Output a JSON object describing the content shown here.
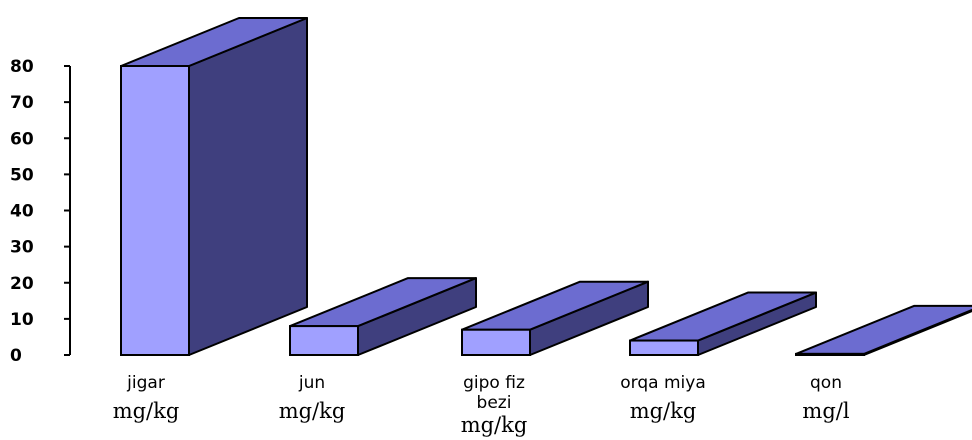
{
  "chart_data": {
    "type": "bar",
    "style": "3d",
    "categories": [
      {
        "name": "jigar",
        "unit": "mg/kg"
      },
      {
        "name": "jun",
        "unit": "mg/kg"
      },
      {
        "name": "gipo fiz bezi",
        "unit": "mg/kg"
      },
      {
        "name": "orqa miya",
        "unit": "mg/kg"
      },
      {
        "name": "qon",
        "unit": "mg/l"
      }
    ],
    "values": [
      80,
      8,
      7,
      4,
      0.3
    ],
    "ylim": [
      0,
      80
    ],
    "yticks": [
      "0",
      "10",
      "20",
      "30",
      "40",
      "50",
      "60",
      "70",
      "80"
    ],
    "grid": false,
    "colors": {
      "front": "#a0a0ff",
      "side": "#3f3f7e",
      "top": "#6c6cd0",
      "outline": "#000000"
    }
  }
}
